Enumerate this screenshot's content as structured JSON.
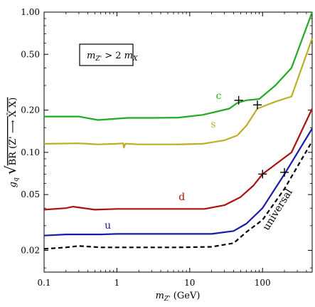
{
  "chart_data": {
    "type": "line",
    "xscale": "log",
    "yscale": "log",
    "xlim": [
      0.1,
      480
    ],
    "ylim": [
      0.014,
      1.0
    ],
    "x_ticks": [
      {
        "v": 0.1,
        "label": "0.1"
      },
      {
        "v": 1,
        "label": "1"
      },
      {
        "v": 10,
        "label": "10"
      },
      {
        "v": 100,
        "label": "100"
      }
    ],
    "y_ticks": [
      {
        "v": 0.02,
        "label": "0.02"
      },
      {
        "v": 0.05,
        "label": "0.05"
      },
      {
        "v": 0.1,
        "label": "0.10"
      },
      {
        "v": 0.2,
        "label": "0.20"
      },
      {
        "v": 0.5,
        "label": "0.50"
      },
      {
        "v": 1.0,
        "label": "1.00"
      }
    ],
    "xlabel": "m_{Z'} (GeV)",
    "ylabel": "g_q √(BR(Z' → X̄ X))",
    "annotation": "m_{Z'} > 2 m_X",
    "series": [
      {
        "name": "c",
        "color": "#22aa22",
        "dashed": false,
        "x": [
          0.1,
          0.3,
          0.55,
          1.4,
          3,
          7,
          15,
          35,
          45,
          60,
          90,
          150,
          250,
          480
        ],
        "y": [
          0.18,
          0.18,
          0.17,
          0.176,
          0.176,
          0.177,
          0.185,
          0.205,
          0.225,
          0.235,
          0.24,
          0.3,
          0.4,
          1.0
        ],
        "label_at": [
          25,
          0.24
        ],
        "marker": [
          47,
          0.235
        ]
      },
      {
        "name": "s",
        "color": "#bbb022",
        "dashed": false,
        "x": [
          0.1,
          0.3,
          0.55,
          1.0,
          1.22,
          1.25,
          1.3,
          1.4,
          2,
          3,
          7,
          15,
          30,
          45,
          60,
          85,
          150,
          250,
          480
        ],
        "y": [
          0.115,
          0.116,
          0.114,
          0.115,
          0.116,
          0.108,
          0.115,
          0.115,
          0.114,
          0.114,
          0.114,
          0.115,
          0.122,
          0.132,
          0.155,
          0.205,
          0.23,
          0.25,
          0.65
        ],
        "label_at": [
          21,
          0.15
        ],
        "marker": [
          85,
          0.218
        ]
      },
      {
        "name": "d",
        "color": "#aa1111",
        "dashed": false,
        "x": [
          0.1,
          0.2,
          0.25,
          0.5,
          1,
          3,
          7,
          16,
          30,
          50,
          75,
          100,
          150,
          250,
          480
        ],
        "y": [
          0.039,
          0.04,
          0.041,
          0.039,
          0.0395,
          0.0395,
          0.0395,
          0.0395,
          0.042,
          0.048,
          0.058,
          0.07,
          0.082,
          0.1,
          0.205
        ],
        "label_at": [
          7.8,
          0.0455
        ],
        "marker": [
          100,
          0.07
        ]
      },
      {
        "name": "u",
        "color": "#1a1aaa",
        "dashed": false,
        "x": [
          0.1,
          0.2,
          0.3,
          0.6,
          1,
          3,
          7,
          20,
          40,
          60,
          100,
          200,
          480
        ],
        "y": [
          0.0255,
          0.026,
          0.026,
          0.026,
          0.0262,
          0.0262,
          0.0262,
          0.0262,
          0.0275,
          0.031,
          0.04,
          0.07,
          0.148
        ],
        "label_at": [
          0.75,
          0.0285
        ],
        "marker": [
          200,
          0.072
        ]
      },
      {
        "name": "universal",
        "color": "#000000",
        "dashed": true,
        "x": [
          0.1,
          0.2,
          0.3,
          0.6,
          1,
          3,
          7,
          20,
          40,
          60,
          100,
          200,
          480
        ],
        "y": [
          0.0205,
          0.021,
          0.0215,
          0.021,
          0.021,
          0.021,
          0.021,
          0.0212,
          0.0225,
          0.027,
          0.033,
          0.055,
          0.12
        ],
        "label_at": [
          175,
          0.038
        ],
        "label_rotate": -58,
        "marker": null
      }
    ]
  }
}
